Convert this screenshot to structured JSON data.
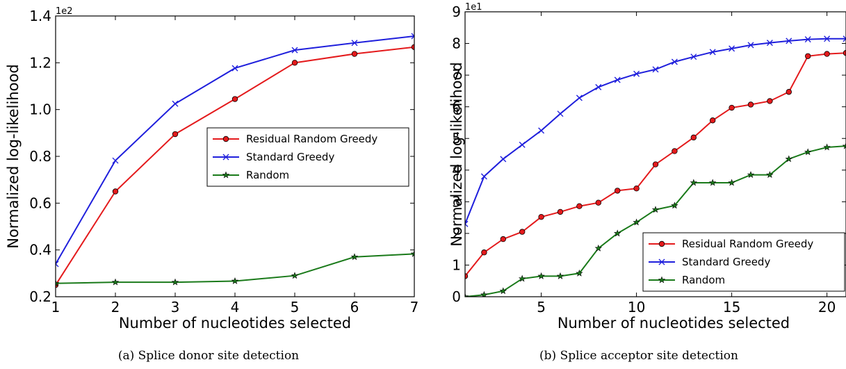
{
  "chart_data": [
    {
      "type": "line",
      "caption": "(a) Splice donor site detection",
      "xlabel": "Number of nucleotides selected",
      "ylabel": "Normalized log-likelihood",
      "y_offset_text": "1e2",
      "xlim": [
        1,
        7
      ],
      "ylim": [
        0.2,
        1.4
      ],
      "xticks": [
        "1",
        "2",
        "3",
        "4",
        "5",
        "6",
        "7"
      ],
      "yticks": [
        "0.2",
        "0.4",
        "0.6",
        "0.8",
        "1.0",
        "1.2",
        "1.4"
      ],
      "legend_position": "center-right",
      "x": [
        1,
        2,
        3,
        4,
        5,
        6,
        7
      ],
      "series": [
        {
          "name": "Residual Random Greedy",
          "color": "#e41a1c",
          "marker": "circle",
          "values": [
            0.25,
            0.65,
            0.895,
            1.045,
            1.2,
            1.238,
            1.267
          ]
        },
        {
          "name": "Standard Greedy",
          "color": "#1f1fdc",
          "marker": "x",
          "values": [
            0.34,
            0.782,
            1.025,
            1.177,
            1.254,
            1.285,
            1.314
          ]
        },
        {
          "name": "Random",
          "color": "#1a7a1a",
          "marker": "star",
          "values": [
            0.257,
            0.262,
            0.262,
            0.267,
            0.29,
            0.37,
            0.383
          ]
        }
      ]
    },
    {
      "type": "line",
      "caption": "(b) Splice acceptor site detection",
      "xlabel": "Number of nucleotides selected",
      "ylabel": "Normalized log-likelihood",
      "y_offset_text": "1e1",
      "xlim": [
        1,
        21
      ],
      "ylim": [
        0,
        9
      ],
      "xticks": [
        "5",
        "10",
        "15",
        "20"
      ],
      "xtick_values": [
        5,
        10,
        15,
        20
      ],
      "yticks": [
        "0",
        "1",
        "2",
        "3",
        "4",
        "5",
        "6",
        "7",
        "8",
        "9"
      ],
      "legend_position": "lower-right",
      "x": [
        1,
        2,
        3,
        4,
        5,
        6,
        7,
        8,
        9,
        10,
        11,
        12,
        13,
        14,
        15,
        16,
        17,
        18,
        19,
        20,
        21
      ],
      "series": [
        {
          "name": "Residual Random Greedy",
          "color": "#e41a1c",
          "marker": "circle",
          "values": [
            0.65,
            1.4,
            1.82,
            2.05,
            2.52,
            2.68,
            2.86,
            2.97,
            3.35,
            3.42,
            4.18,
            4.6,
            5.03,
            5.57,
            5.97,
            6.07,
            6.18,
            6.47,
            7.6,
            7.67,
            7.7
          ]
        },
        {
          "name": "Standard Greedy",
          "color": "#1f1fdc",
          "marker": "x",
          "values": [
            2.3,
            3.8,
            4.35,
            4.8,
            5.25,
            5.78,
            6.28,
            6.62,
            6.85,
            7.04,
            7.18,
            7.42,
            7.58,
            7.73,
            7.84,
            7.95,
            8.02,
            8.08,
            8.13,
            8.15,
            8.15
          ]
        },
        {
          "name": "Random",
          "color": "#1a7a1a",
          "marker": "star",
          "values": [
            0.0,
            0.06,
            0.18,
            0.57,
            0.65,
            0.65,
            0.74,
            1.53,
            2.0,
            2.35,
            2.75,
            2.88,
            3.6,
            3.6,
            3.6,
            3.85,
            3.85,
            4.35,
            4.57,
            4.72,
            4.76
          ]
        }
      ]
    }
  ]
}
